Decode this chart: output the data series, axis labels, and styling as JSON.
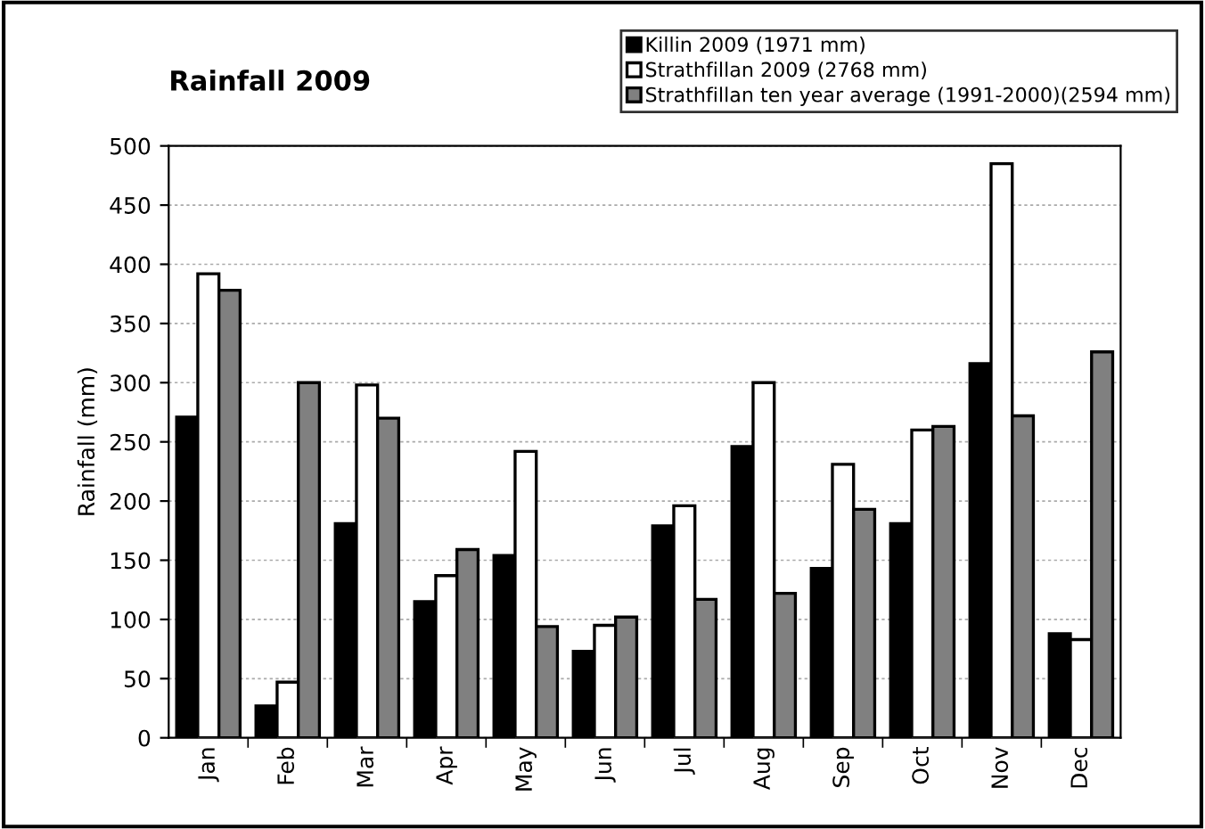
{
  "chart_data": {
    "type": "bar",
    "title": "Rainfall 2009",
    "ylabel": "Rainfall (mm)",
    "categories": [
      "Jan",
      "Feb",
      "Mar",
      "Apr",
      "May",
      "Jun",
      "Jul",
      "Aug",
      "Sep",
      "Oct",
      "Nov",
      "Dec"
    ],
    "series": [
      {
        "name": "Killin 2009 (1971 mm)",
        "color": "#000000",
        "values": [
          271,
          27,
          181,
          115,
          154,
          73,
          179,
          246,
          143,
          181,
          316,
          88
        ]
      },
      {
        "name": "Strathfillan 2009 (2768 mm)",
        "color": "#ffffff",
        "values": [
          392,
          47,
          298,
          137,
          242,
          95,
          196,
          300,
          231,
          260,
          485,
          83
        ]
      },
      {
        "name": "Strathfillan ten year average (1991-2000)(2594 mm)",
        "color": "#808080",
        "values": [
          378,
          300,
          270,
          159,
          94,
          102,
          117,
          122,
          193,
          263,
          272,
          326
        ]
      }
    ],
    "ylim": [
      0,
      500
    ],
    "yticks": [
      0,
      50,
      100,
      150,
      200,
      250,
      300,
      350,
      400,
      450,
      500
    ],
    "grid": "y",
    "legend": "top right"
  }
}
